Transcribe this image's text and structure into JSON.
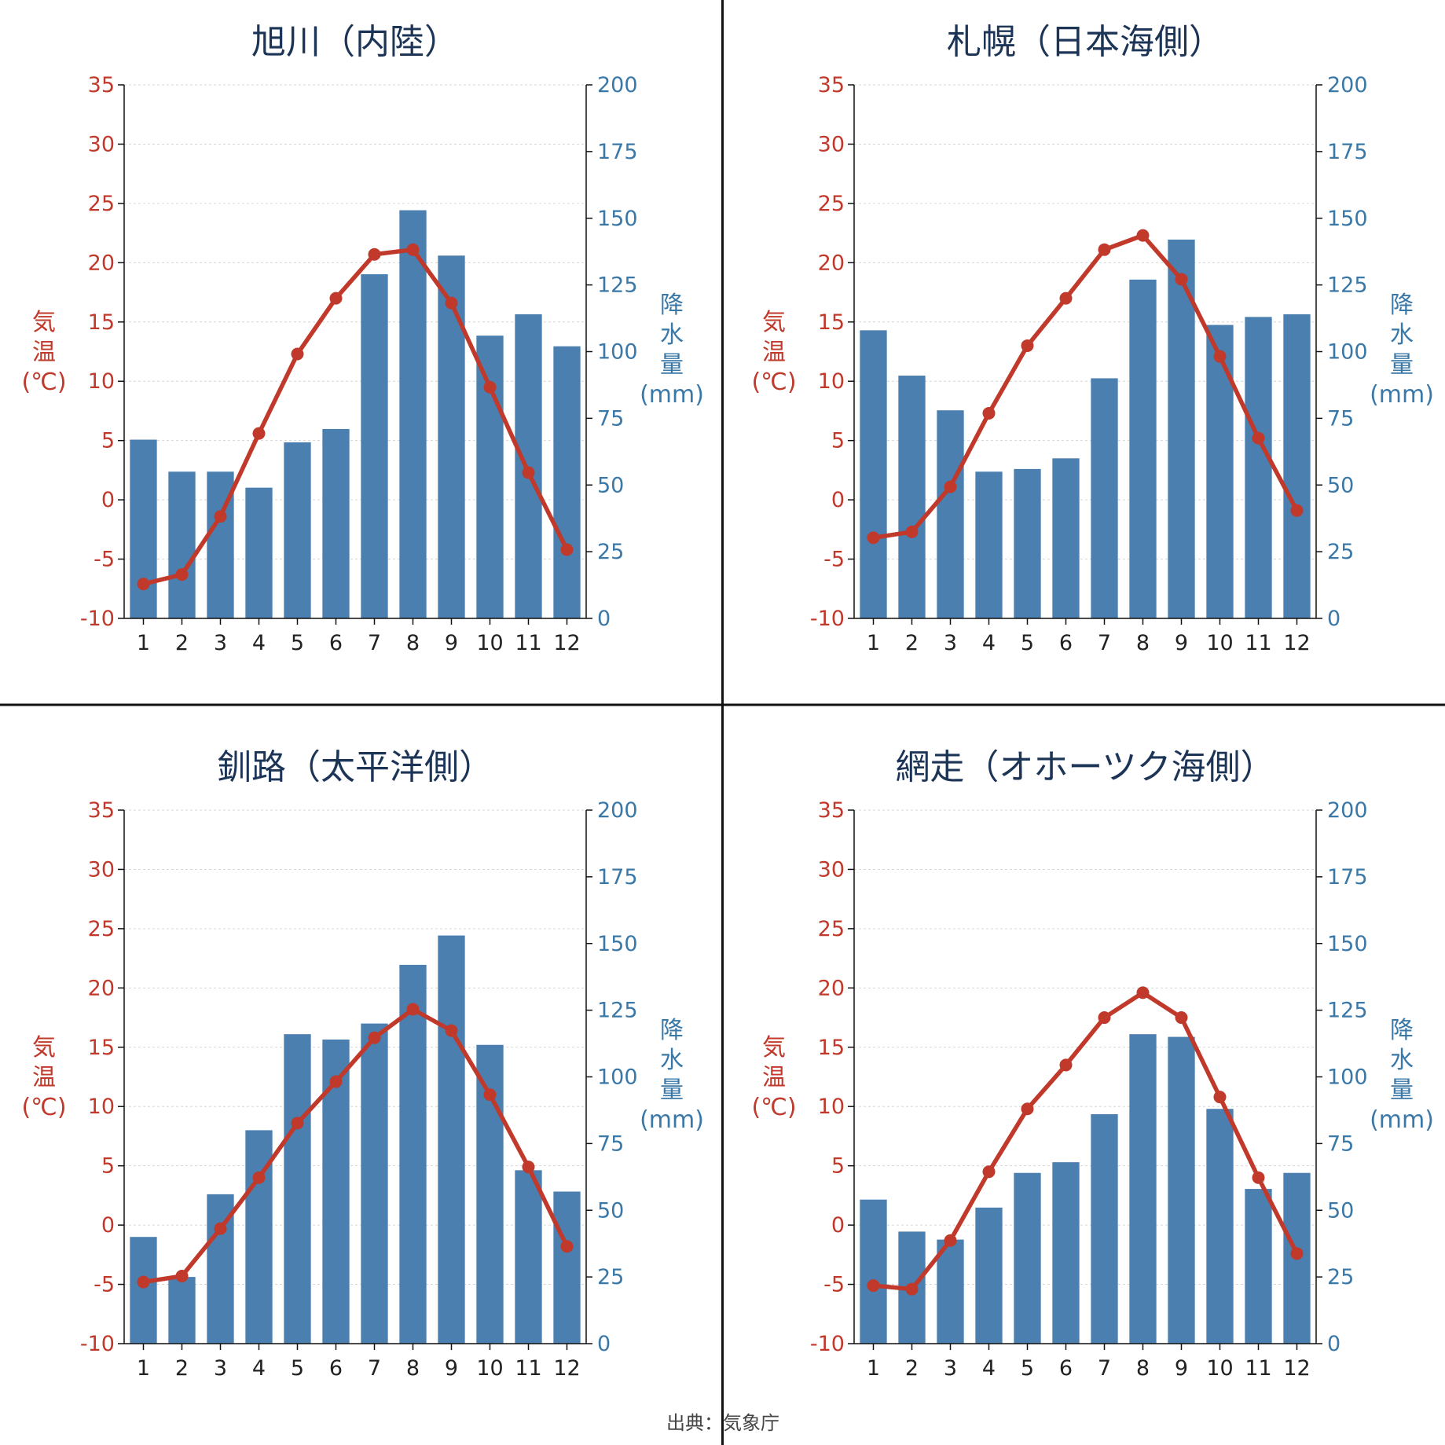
{
  "source": "出典：気象庁",
  "axis_labels": {
    "temp": [
      "気",
      "温",
      "(℃)"
    ],
    "precip": [
      "降",
      "水",
      "量",
      "(mm)"
    ]
  },
  "colors": {
    "bar": "#4a7fb0",
    "line": "#c0392b",
    "title": "#1c3557",
    "temp_axis": "#c0392b",
    "precip_axis": "#3a78a8"
  },
  "chart_data": [
    {
      "type": "bar+line",
      "title": "旭川（内陸）",
      "categories": [
        "1",
        "2",
        "3",
        "4",
        "5",
        "6",
        "7",
        "8",
        "9",
        "10",
        "11",
        "12"
      ],
      "ylim_temp": [
        -10,
        35
      ],
      "ylim_precip": [
        0,
        200
      ],
      "temp_ticks": [
        -10,
        -5,
        0,
        5,
        10,
        15,
        20,
        25,
        30,
        35
      ],
      "precip_ticks": [
        0,
        25,
        50,
        75,
        100,
        125,
        150,
        175,
        200
      ],
      "grid": true,
      "series": [
        {
          "name": "降水量",
          "kind": "bar",
          "axis": "precip",
          "values": [
            67,
            55,
            55,
            49,
            66,
            71,
            129,
            153,
            136,
            106,
            114,
            102
          ]
        },
        {
          "name": "気温",
          "kind": "line",
          "axis": "temp",
          "values": [
            -7.1,
            -6.3,
            -1.4,
            5.6,
            12.3,
            17.0,
            20.7,
            21.1,
            16.6,
            9.5,
            2.3,
            -4.2
          ]
        }
      ]
    },
    {
      "type": "bar+line",
      "title": "札幌（日本海側）",
      "categories": [
        "1",
        "2",
        "3",
        "4",
        "5",
        "6",
        "7",
        "8",
        "9",
        "10",
        "11",
        "12"
      ],
      "ylim_temp": [
        -10,
        35
      ],
      "ylim_precip": [
        0,
        200
      ],
      "temp_ticks": [
        -10,
        -5,
        0,
        5,
        10,
        15,
        20,
        25,
        30,
        35
      ],
      "precip_ticks": [
        0,
        25,
        50,
        75,
        100,
        125,
        150,
        175,
        200
      ],
      "grid": true,
      "series": [
        {
          "name": "降水量",
          "kind": "bar",
          "axis": "precip",
          "values": [
            108,
            91,
            78,
            55,
            56,
            60,
            90,
            127,
            142,
            110,
            113,
            114
          ]
        },
        {
          "name": "気温",
          "kind": "line",
          "axis": "temp",
          "values": [
            -3.2,
            -2.7,
            1.1,
            7.3,
            13.0,
            17.0,
            21.1,
            22.3,
            18.6,
            12.1,
            5.2,
            -0.9
          ]
        }
      ]
    },
    {
      "type": "bar+line",
      "title": "釧路（太平洋側）",
      "categories": [
        "1",
        "2",
        "3",
        "4",
        "5",
        "6",
        "7",
        "8",
        "9",
        "10",
        "11",
        "12"
      ],
      "ylim_temp": [
        -10,
        35
      ],
      "ylim_precip": [
        0,
        200
      ],
      "temp_ticks": [
        -10,
        -5,
        0,
        5,
        10,
        15,
        20,
        25,
        30,
        35
      ],
      "precip_ticks": [
        0,
        25,
        50,
        75,
        100,
        125,
        150,
        175,
        200
      ],
      "grid": true,
      "series": [
        {
          "name": "降水量",
          "kind": "bar",
          "axis": "precip",
          "values": [
            40,
            25,
            56,
            80,
            116,
            114,
            120,
            142,
            153,
            112,
            65,
            57
          ]
        },
        {
          "name": "気温",
          "kind": "line",
          "axis": "temp",
          "values": [
            -4.8,
            -4.3,
            -0.3,
            4.0,
            8.6,
            12.1,
            15.8,
            18.2,
            16.4,
            11.0,
            4.9,
            -1.8
          ]
        }
      ]
    },
    {
      "type": "bar+line",
      "title": "網走（オホーツク海側）",
      "categories": [
        "1",
        "2",
        "3",
        "4",
        "5",
        "6",
        "7",
        "8",
        "9",
        "10",
        "11",
        "12"
      ],
      "ylim_temp": [
        -10,
        35
      ],
      "ylim_precip": [
        0,
        200
      ],
      "temp_ticks": [
        -10,
        -5,
        0,
        5,
        10,
        15,
        20,
        25,
        30,
        35
      ],
      "precip_ticks": [
        0,
        25,
        50,
        75,
        100,
        125,
        150,
        175,
        200
      ],
      "grid": true,
      "series": [
        {
          "name": "降水量",
          "kind": "bar",
          "axis": "precip",
          "values": [
            54,
            42,
            39,
            51,
            64,
            68,
            86,
            116,
            115,
            88,
            58,
            64
          ]
        },
        {
          "name": "気温",
          "kind": "line",
          "axis": "temp",
          "values": [
            -5.1,
            -5.4,
            -1.3,
            4.5,
            9.8,
            13.5,
            17.5,
            19.6,
            17.5,
            10.8,
            4.0,
            -2.4
          ]
        }
      ]
    }
  ]
}
